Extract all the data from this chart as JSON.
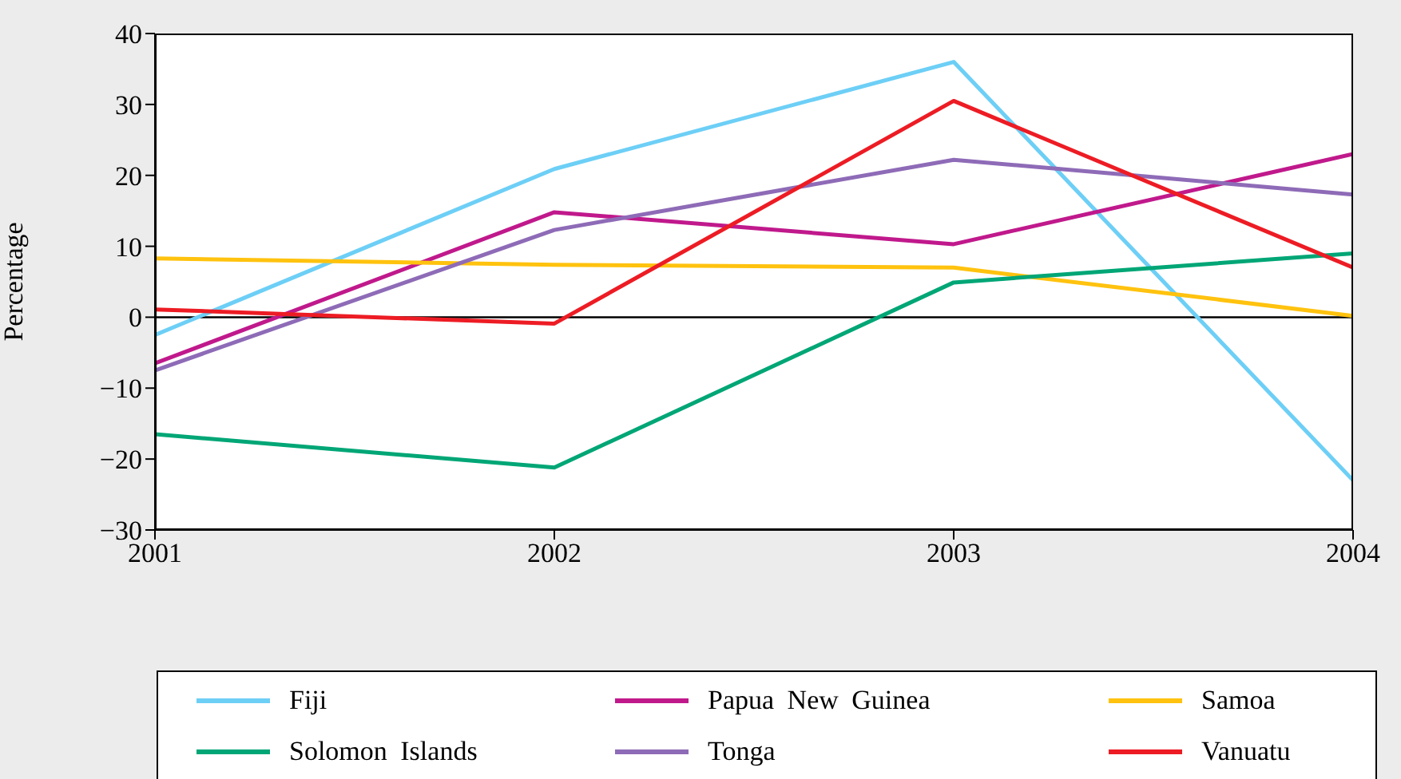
{
  "chart_data": {
    "type": "line",
    "ylabel": "Percentage",
    "x": [
      2001,
      2002,
      2003,
      2004
    ],
    "xlim": [
      2001,
      2004
    ],
    "xticks": [
      2001,
      2002,
      2003,
      2004
    ],
    "ylim": [
      -30,
      40
    ],
    "yticks": [
      {
        "value": -30,
        "label": "−30"
      },
      {
        "value": -20,
        "label": "−20"
      },
      {
        "value": -10,
        "label": "−10"
      },
      0,
      10,
      20,
      30,
      40
    ],
    "legend": "bottom",
    "ref_lines": [
      {
        "axis": "y",
        "value": 0,
        "color": "#000000"
      }
    ],
    "series": [
      {
        "name": "Fiji",
        "color": "#6dcff6",
        "values": [
          -2.5,
          20.9,
          36,
          -23
        ]
      },
      {
        "name": "Papua New Guinea",
        "color": "#c0198c",
        "values": [
          -6.5,
          14.8,
          10.3,
          23
        ]
      },
      {
        "name": "Samoa",
        "color": "#ffc20e",
        "values": [
          8.3,
          7.4,
          7,
          0.2
        ]
      },
      {
        "name": "Solomon Islands",
        "color": "#00a676",
        "values": [
          -16.5,
          -21.2,
          4.9,
          9
        ]
      },
      {
        "name": "Tonga",
        "color": "#8e6bb7",
        "values": [
          -7.5,
          12.3,
          22.2,
          17.3
        ]
      },
      {
        "name": "Vanuatu",
        "color": "#ed1c24",
        "values": [
          1.1,
          -0.9,
          30.5,
          7
        ]
      }
    ]
  }
}
